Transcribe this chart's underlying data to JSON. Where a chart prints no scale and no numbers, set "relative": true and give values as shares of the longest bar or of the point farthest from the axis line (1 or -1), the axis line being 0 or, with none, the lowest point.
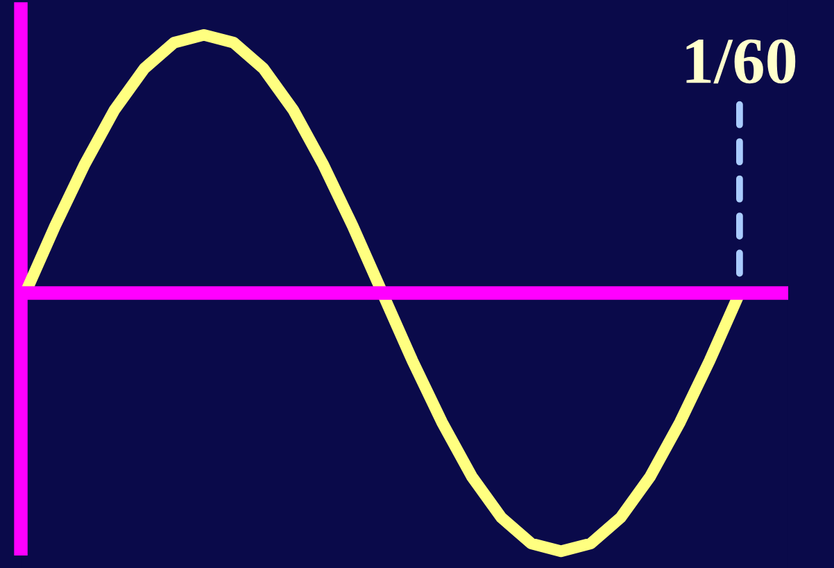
{
  "chart_data": {
    "type": "line",
    "relative": true,
    "categories": [
      null,
      null,
      null,
      null,
      null,
      null,
      null,
      null,
      null,
      null,
      null,
      null,
      null,
      null,
      null,
      null,
      null,
      null,
      null,
      null,
      null,
      null,
      null,
      null,
      null
    ],
    "series": [
      {
        "color": "#ffff80",
        "values": [
          0,
          0.26,
          0.5,
          0.71,
          0.87,
          0.97,
          1,
          0.97,
          0.87,
          0.71,
          0.5,
          0.26,
          0,
          -0.26,
          -0.5,
          -0.71,
          -0.87,
          -0.97,
          -1,
          -0.97,
          -0.87,
          -0.71,
          -0.5,
          -0.26,
          0
        ]
      }
    ],
    "ref_lines": [
      {
        "axis": "y",
        "value": 0,
        "color": "#ff00ff"
      }
    ],
    "annotations": [
      "1/60"
    ]
  }
}
